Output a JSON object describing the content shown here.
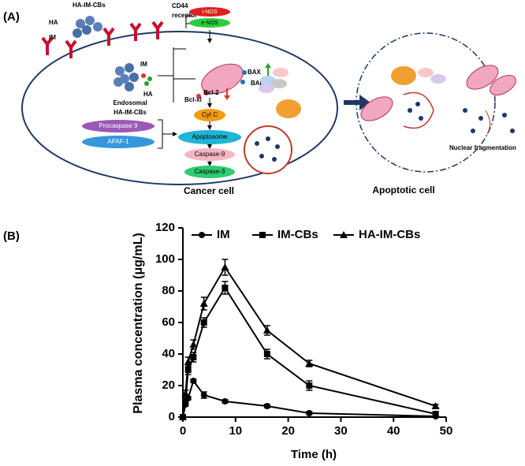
{
  "panel_a": {
    "label": "(A)",
    "nanoparticle": "HA-IM-CBs",
    "ha": "HA",
    "im": "IM",
    "receptor_line1": "CD44",
    "receptor_line2": "receptor",
    "released_im": "IM",
    "released_ha": "HA",
    "endosomal_line1": "Endosomal",
    "endosomal_line2": "HA-IM-CBs",
    "inos": "i-NOS",
    "enos": "e-NOS",
    "bax": "BAX",
    "bad": "BAD",
    "bcl2": "Bcl-2",
    "bclxl": "Bcl-xl",
    "cytc": "Cyt C",
    "procaspase9": "Procaspase 9",
    "apaf1": "APAF-1",
    "apoptosome": "Apoptosome",
    "caspase9": "Caspase-9",
    "caspase3": "Caspase-3",
    "cancer_cell": "Cancer cell",
    "apoptotic_cell": "Apoptotic cell",
    "nuclear_fragmentation": "Nuclear fragmentation"
  },
  "panel_b": {
    "label": "(B)"
  },
  "chart_data": {
    "type": "line",
    "xlabel": "Time (h)",
    "ylabel": "Plasma concentration (μg/mL)",
    "x": [
      0,
      0.5,
      1,
      2,
      4,
      8,
      16,
      24,
      48
    ],
    "series": [
      {
        "name": "IM",
        "color": "#000000",
        "marker": "circle",
        "values": [
          0,
          8,
          12,
          23,
          14,
          10,
          7,
          2.5,
          0.5
        ],
        "errors": [
          0,
          1,
          1,
          1,
          2,
          1,
          1,
          1,
          0.5
        ]
      },
      {
        "name": "IM-CBs",
        "color": "#000000",
        "marker": "square",
        "values": [
          0,
          10,
          30,
          38,
          60,
          82,
          40,
          20,
          2
        ],
        "errors": [
          0,
          2,
          3,
          3,
          3,
          4,
          3,
          3,
          1
        ]
      },
      {
        "name": "HA-IM-CBs",
        "color": "#000000",
        "marker": "triangle",
        "values": [
          0,
          15,
          35,
          46,
          72,
          95,
          55,
          34,
          7
        ],
        "errors": [
          0,
          2,
          3,
          3,
          4,
          5,
          3,
          2,
          1
        ]
      }
    ],
    "xlim": [
      0,
      50
    ],
    "xticks": [
      0,
      10,
      20,
      30,
      40,
      50
    ],
    "ylim": [
      0,
      120
    ],
    "yticks": [
      0,
      20,
      40,
      60,
      80,
      100,
      120
    ],
    "grid": false,
    "legend": "top"
  }
}
